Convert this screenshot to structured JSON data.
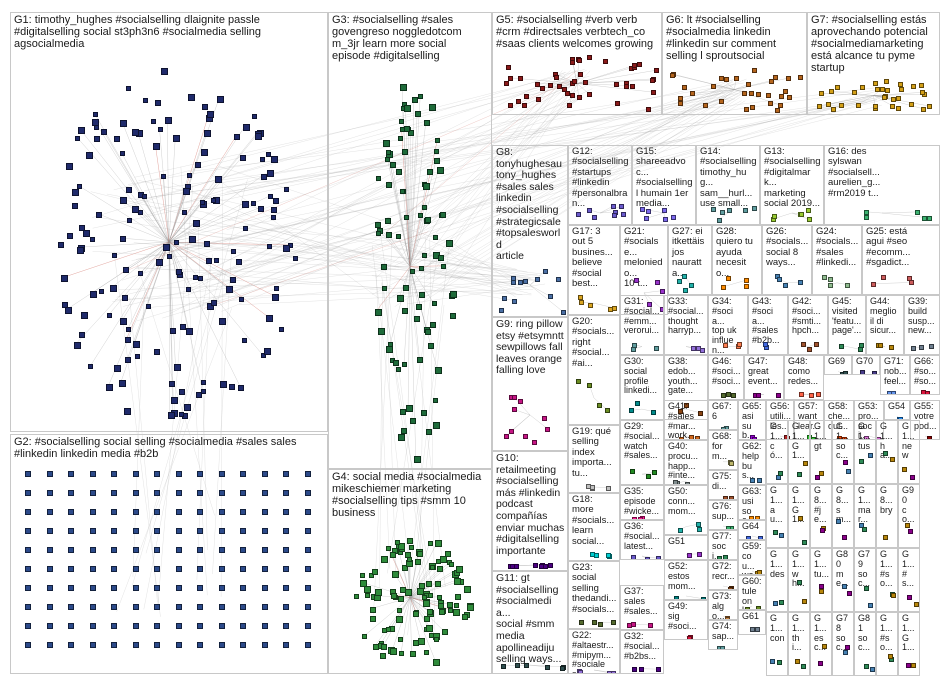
{
  "diagram": {
    "type": "network-graph-clusters",
    "edge_color": "#9a9a9a",
    "highlight_edge_color": "#c0392b",
    "groups": [
      {
        "id": "G1",
        "label": "G1: timothy_hughes #socialselling dlaignite passle\n#digitalselling social st3ph3n6 #socialmedia selling\nagsocialmedia",
        "color": "#1f2a6b",
        "nodes": 160
      },
      {
        "id": "G2",
        "label": "G2: #socialselling social selling #socialmedia #sales sales\n#linkedin linkedin media #b2b",
        "color": "#2c4a8a",
        "nodes": 140
      },
      {
        "id": "G3",
        "label": "G3: #socialselling #sales\ngovengreso noggledotcom\nm_3jr learn more social\nepisode #digitalselling",
        "color": "#1e6b3a",
        "nodes": 90
      },
      {
        "id": "G4",
        "label": "G4: social media #socialmedia\nmikeschiemer marketing\n#socialselling tips #smm 10\nbusiness",
        "color": "#2e8b3a",
        "nodes": 110
      },
      {
        "id": "G5",
        "label": "G5: #socialselling #verb verb\n#crm #directsales verbtech_co\n#saas clients welcomes growing",
        "color": "#8b1a1a",
        "nodes": 45
      },
      {
        "id": "G6",
        "label": "G6: lt #socialselling\n#socialmedia linkedin\n#linkedin sur comment\nselling l sproutsocial",
        "color": "#b5651d",
        "nodes": 30
      },
      {
        "id": "G7",
        "label": "G7: #socialselling estás\naprovechando potencial\n#socialmediamarketing\nestá alcance tu pyme\nstartup",
        "color": "#d4a017",
        "nodes": 32
      },
      {
        "id": "G8",
        "label": "G8:\ntonyhughesau\ntony_hughes\n#sales sales\nlinkedin\n#socialselling\n#strategicsale\n#topsalesworld\narticle",
        "color": "#4a6fa5",
        "nodes": 12
      },
      {
        "id": "G12",
        "label": "G12:\n#socialselling\n#startups\n#linkedin\n#personalbran...",
        "color": "#6a5acd",
        "nodes": 8
      },
      {
        "id": "G15",
        "label": "G15:\nshareeadvoc...\n#socialselling\nl humain 1er\nmedia...",
        "color": "#7b68ee",
        "nodes": 6
      },
      {
        "id": "G14",
        "label": "G14:\n#socialselling\ntimothy_hug...\nsam__hurl...\nuse small...",
        "color": "#5f9ea0",
        "nodes": 6
      },
      {
        "id": "G13",
        "label": "G13:\n#socialselling\n#digitalmark...\nmarketing\nsocial 2019...",
        "color": "#9acd32",
        "nodes": 6
      },
      {
        "id": "G16",
        "label": "G16: des\nsylswan\n#socialsell...\naurelien_g...\n#rm2019 t...",
        "color": "#3cb371",
        "nodes": 5
      },
      {
        "id": "G17",
        "label": "G17: 3\nout 5\nbusines...\nbelieve\n#social\nbest...",
        "color": "#daa520",
        "nodes": 5
      },
      {
        "id": "G21",
        "label": "G21:\n#socialse...\nmeloniedo...\n10 t...",
        "color": "#9932cc",
        "nodes": 5
      },
      {
        "id": "G27",
        "label": "G27: ei\nitkettäis\njos\nnauratta...",
        "color": "#20b2aa",
        "nodes": 4
      },
      {
        "id": "G28",
        "label": "G28:\nquiero tu\nayuda\nnecesito...",
        "color": "#ff8c00",
        "nodes": 4
      },
      {
        "id": "G26",
        "label": "G26:\n#socials...\nsocial 8\nways...",
        "color": "#4682b4",
        "nodes": 4
      },
      {
        "id": "G24",
        "label": "G24:\n#socials...\n#sales\n#linkedi...",
        "color": "#8fbc8f",
        "nodes": 4
      },
      {
        "id": "G25",
        "label": "G25: está\nagui #seo\n#ecomm...\n#sgadict...",
        "color": "#cd5c5c",
        "nodes": 4
      },
      {
        "id": "G9",
        "label": "G9: ring pillow\netsy #etsymntt\nsewpillows fall\nleaves orange\nfalling love",
        "color": "#c71585",
        "nodes": 10
      },
      {
        "id": "G20",
        "label": "G20:\n#socials...\nright\n#social...\n#ai...",
        "color": "#6b8e23",
        "nodes": 4
      },
      {
        "id": "G31",
        "label": "G31:\n#social...\n#emm...\nverorui...",
        "color": "#5f9ea0",
        "nodes": 3
      },
      {
        "id": "G33",
        "label": "G33:\n#social...\nthought\nharryp...",
        "color": "#9370db",
        "nodes": 3
      },
      {
        "id": "G34",
        "label": "G34:\n#socia...\ntop uk\ninfluen...",
        "color": "#ff7f50",
        "nodes": 3
      },
      {
        "id": "G43",
        "label": "G43:\n#socia...\n#sales\n#b2b...",
        "color": "#4169e1",
        "nodes": 3
      },
      {
        "id": "G42",
        "label": "G42:\n#soci...\n#smti...\nhpch...",
        "color": "#a0522d",
        "nodes": 3
      },
      {
        "id": "G45",
        "label": "G45:\nvisited\n'featu...\npage'...",
        "color": "#2e8b57",
        "nodes": 3
      },
      {
        "id": "G44",
        "label": "G44:\nmeglio\nil di\nsicur...",
        "color": "#b8860b",
        "nodes": 3
      },
      {
        "id": "G39",
        "label": "G39:\nbuild\nsusp...\nnew...",
        "color": "#708090",
        "nodes": 3
      },
      {
        "id": "G30",
        "label": "G30:\nsocial\nprofile\nlinkedi...",
        "color": "#008b8b",
        "nodes": 3
      },
      {
        "id": "G38",
        "label": "G38:\nedob...\nyouth...\ngate...",
        "color": "#8b4513",
        "nodes": 3
      },
      {
        "id": "G46",
        "label": "G46:\n#soci...\n#soci...",
        "color": "#556b2f",
        "nodes": 3
      },
      {
        "id": "G47",
        "label": "G47:\ngreat\nevent...",
        "color": "#8b008b",
        "nodes": 3
      },
      {
        "id": "G48",
        "label": "G48:\ncomo\nredes...",
        "color": "#ff6347",
        "nodes": 3
      },
      {
        "id": "G69",
        "label": "G69",
        "color": "#2f4f4f",
        "nodes": 2
      },
      {
        "id": "G70",
        "label": "G70",
        "color": "#483d8b",
        "nodes": 2
      },
      {
        "id": "G71",
        "label": "G71:\nnob...\nfeel...",
        "color": "#6495ed",
        "nodes": 2
      },
      {
        "id": "G66",
        "label": "G66:\n#so...\n#so...",
        "color": "#dc143c",
        "nodes": 2
      },
      {
        "id": "G19",
        "label": "G19: qué\nselling\nindex\nimporta...\ntu...",
        "color": "#c0c0c0",
        "nodes": 4
      },
      {
        "id": "G29",
        "label": "G29:\n#social...\nwatch\n#sales...",
        "color": "#228b22",
        "nodes": 3
      },
      {
        "id": "G41",
        "label": "G41:\n#sales\n#mar...\nwork...",
        "color": "#d2691e",
        "nodes": 3
      },
      {
        "id": "G67",
        "label": "G67:\n6",
        "color": "#5f9ea0",
        "nodes": 2
      },
      {
        "id": "G65",
        "label": "G65:\nasi\nsub...",
        "color": "#9400d3",
        "nodes": 2
      },
      {
        "id": "G56",
        "label": "G56:\nutili...\nles...",
        "color": "#b22222",
        "nodes": 2
      },
      {
        "id": "G57",
        "label": "G57:\nwant\nlear...",
        "color": "#32cd32",
        "nodes": 2
      },
      {
        "id": "G58",
        "label": "G58:\nche...\nout...",
        "color": "#ff4500",
        "nodes": 2
      },
      {
        "id": "G53",
        "label": "G53:\npro...\nsoci...",
        "color": "#da70d6",
        "nodes": 2
      },
      {
        "id": "G54",
        "label": "G54",
        "color": "#1e90ff",
        "nodes": 2
      },
      {
        "id": "G55",
        "label": "G55:\nvotre\npod...",
        "color": "#8b0000",
        "nodes": 2
      },
      {
        "id": "G10",
        "label": "G10:\nretailmeeting\n#socialselling\nmás #linkedin\npodcast\ncompañías\nenviar muchas\n#digitalselling\nimportante",
        "color": "#4b0082",
        "nodes": 8
      },
      {
        "id": "G18",
        "label": "G18:\nmore\n#socials...\nlearn\nsocial...",
        "color": "#00ced1",
        "nodes": 4
      },
      {
        "id": "G35",
        "label": "G35:\nepisode\n#wicke...",
        "color": "#ff1493",
        "nodes": 3
      },
      {
        "id": "G40",
        "label": "G40:\nprocu...\nhapp...\n#inte...",
        "color": "#7f8c8d",
        "nodes": 3
      },
      {
        "id": "G68",
        "label": "G68:\nform...",
        "color": "#bdb76b",
        "nodes": 2
      },
      {
        "id": "G62",
        "label": "G62:\nhelp\nbus...",
        "color": "#4682b4",
        "nodes": 2
      },
      {
        "id": "G36",
        "label": "G36:\n#social...\nlatest...",
        "color": "#6a5acd",
        "nodes": 3
      },
      {
        "id": "G50",
        "label": "G50:\nconn...\nmom...",
        "color": "#20b2aa",
        "nodes": 3
      },
      {
        "id": "G75",
        "label": "G75:\ndi...",
        "color": "#a0522d",
        "nodes": 2
      },
      {
        "id": "G76",
        "label": "G76:\nsup...",
        "color": "#3cb371",
        "nodes": 2
      },
      {
        "id": "G63",
        "label": "G63:\nusi\nsoc...",
        "color": "#ff8c00",
        "nodes": 2
      },
      {
        "id": "G64",
        "label": "G64",
        "color": "#4169e1",
        "nodes": 2
      },
      {
        "id": "G23",
        "label": "G23:\nsocial\nselling\nthedandi...\n#socials...",
        "color": "#556b2f",
        "nodes": 4
      },
      {
        "id": "G51",
        "label": "G51",
        "color": "#9932cc",
        "nodes": 2
      },
      {
        "id": "G77",
        "label": "G77:\nsoci...",
        "color": "#2e8b57",
        "nodes": 2
      },
      {
        "id": "G59",
        "label": "G59:\ncou...\nwe...",
        "color": "#b8860b",
        "nodes": 2
      },
      {
        "id": "G11",
        "label": "G11: gt\n#socialselling\n#socialmedia...\nsocial #smm\nmedia\napollineadiju\nselling ways...",
        "color": "#2f4f4f",
        "nodes": 6
      },
      {
        "id": "G37",
        "label": "G37:\nsales\n#sales...",
        "color": "#c71585",
        "nodes": 3
      },
      {
        "id": "G52",
        "label": "G52:\nestos\nmom...",
        "color": "#008080",
        "nodes": 2
      },
      {
        "id": "G72",
        "label": "G72:\nrecr...",
        "color": "#8b4513",
        "nodes": 2
      },
      {
        "id": "G60",
        "label": "G60:\ntule\nonk...",
        "color": "#6b8e23",
        "nodes": 2
      },
      {
        "id": "G22",
        "label": "G22:\n#altaestr...\n#mipym...\n#sociales...\nwebinar...",
        "color": "#9370db",
        "nodes": 4
      },
      {
        "id": "G73",
        "label": "G73:\nalgo...",
        "color": "#cd853f",
        "nodes": 2
      },
      {
        "id": "G32",
        "label": "G32:\n#social...\n#b2bs...",
        "color": "#4b0082",
        "nodes": 3
      },
      {
        "id": "G49",
        "label": "G49:\nsig\n#soci...",
        "color": "#dc143c",
        "nodes": 2
      },
      {
        "id": "G74",
        "label": "G74:\nsap...",
        "color": "#5f9ea0",
        "nodes": 2
      },
      {
        "id": "G61",
        "label": "G61",
        "color": "#708090",
        "nodes": 2
      }
    ],
    "small_groups": [
      "G1...\ncó...",
      "G1...\nG1...",
      "G1...\ngt",
      "G1...\nsoc...",
      "G1...\ntus",
      "G1...\nha...",
      "G1...\nnew",
      "G1...\nenr...",
      "G1...\nau...",
      "G1...\nG1...",
      "G8...\n#je...",
      "G8...\nsm...",
      "G1...\nmar...",
      "G8...\nbry",
      "G90\nco...",
      "G89\ntea",
      "G1...\ndes",
      "G1...\nwh...",
      "G1...\ntu...",
      "G80\nme...",
      "G79\nsoc...",
      "G1...\n#so...",
      "G1...\n#s...",
      "G1...\nun...",
      "G1...\ncon",
      "G1...\nthi...",
      "G1...\nesc...",
      "G78\nsoc...",
      "G81\nsoc...",
      "G1...\n#so...",
      "G1...\nG1...",
      "G1...\n#s..."
    ]
  }
}
